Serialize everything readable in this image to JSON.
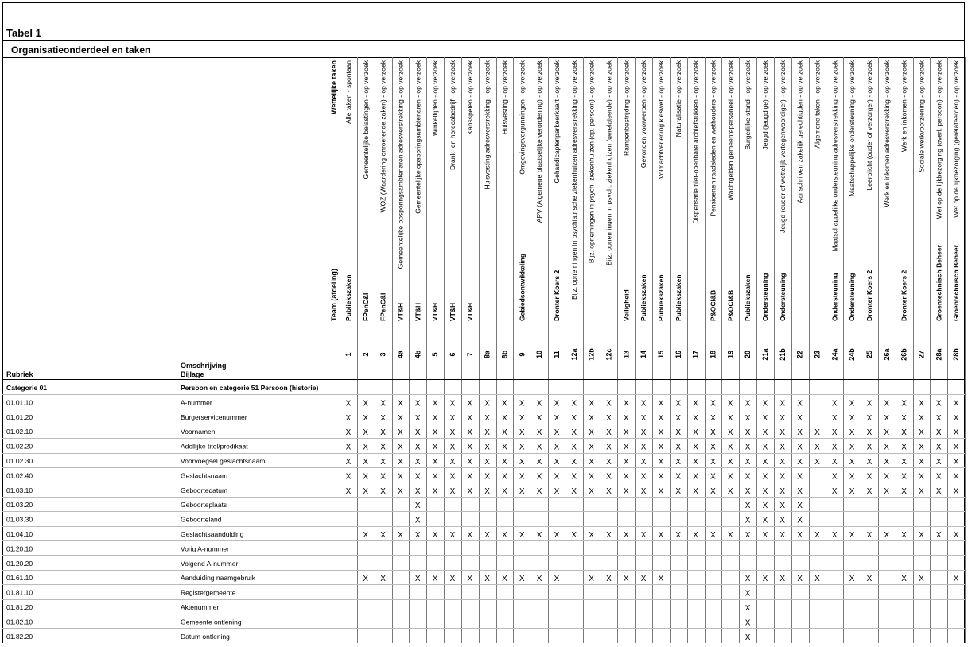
{
  "header": {
    "title": "Tabel 1",
    "subtitle": "Organisatieonderdeel en taken"
  },
  "table": {
    "team_heading": "Team (afdeling)",
    "task_heading": "Wettelijke taken",
    "rubriek_heading": "Rubriek",
    "omschrijving_heading": "Omschrijving",
    "bijlage_heading": "Bijlage",
    "columns": [
      {
        "id": "1",
        "team": "Publiekszaken",
        "task": "Alle taken - spontaan"
      },
      {
        "id": "2",
        "team": "FPenC&I",
        "task": "Gemeentelijke belastingen - op verzoek"
      },
      {
        "id": "3",
        "team": "FPenC&I",
        "task": "WOZ (Waardering onroerende zaken) - op verzoek"
      },
      {
        "id": "4a",
        "team": "VT&H",
        "task": "Gemeentelijke opsporingsambtenaren adresverstrekking - op verzoek"
      },
      {
        "id": "4b",
        "team": "VT&H",
        "task": "Gemeentelijke opsporingsambtenaren - op verzoek"
      },
      {
        "id": "5",
        "team": "VT&H",
        "task": "Winkeltijden - op verzoek"
      },
      {
        "id": "6",
        "team": "VT&H",
        "task": "Drank- en horecabedrijf - op verzoek"
      },
      {
        "id": "7",
        "team": "VT&H",
        "task": "Kansspelen - op verzoek"
      },
      {
        "id": "8a",
        "team": null,
        "task": "Huisvesting adresverstrekking - op verzoek"
      },
      {
        "id": "8b",
        "team": null,
        "task": "Huisvesting - op verzoek"
      },
      {
        "id": "9",
        "team": "Gebiedsontwikkeling",
        "task": "Omgevingsvergunningen - op verzoek"
      },
      {
        "id": "10",
        "team": null,
        "task": "APV (Algemene plaatselijke verordening) - op verzoek"
      },
      {
        "id": "11",
        "team": "Dronter Koers 2",
        "task": "Gehandicaptenparkeerkaart - op verzoek"
      },
      {
        "id": "12a",
        "team": null,
        "task": "Bijz. opnemingen in psychiatrische ziekenhuizen adresverstrekking - op verzoek"
      },
      {
        "id": "12b",
        "team": null,
        "task": "Bijz. opnemingen in psych. ziekenhuizen (op. persoon) - op verzoek"
      },
      {
        "id": "12c",
        "team": null,
        "task": "Bijz. opnemingen in psych. ziekenhuizen (gerelateerde) - op verzoek"
      },
      {
        "id": "13",
        "team": "Veiligheid",
        "task": "Rampenbestrijding - op verzoek"
      },
      {
        "id": "14",
        "team": "Publiekszaken",
        "task": "Gevonden voorwerpen - op verzoek"
      },
      {
        "id": "15",
        "team": "Publiekszaken",
        "task": "Volmachtverlening kieswet - op verzoek"
      },
      {
        "id": "16",
        "team": "Publiekszaken",
        "task": "Naturalisatie - op verzoek"
      },
      {
        "id": "17",
        "team": null,
        "task": "Dispensatie niet-openbare archiefstukken - op verzoek"
      },
      {
        "id": "18",
        "team": "P&OCI&B",
        "task": "Pensioenen raadsleden en wethouders - op verzoek"
      },
      {
        "id": "19",
        "team": "P&OCI&B",
        "task": "Wachtgelden gemeentepersoneel - op verzoek"
      },
      {
        "id": "20",
        "team": "Publiekszaken",
        "task": "Burgerlijke stand - op verzoek"
      },
      {
        "id": "21a",
        "team": "Ondersteuning",
        "task": "Jeugd (jeugdige) - op verzoek"
      },
      {
        "id": "21b",
        "team": "Ondersteuning",
        "task": "Jeugd (ouder of wettelijk vertegenwoordiger) - op verzoek"
      },
      {
        "id": "22",
        "team": null,
        "task": "Aanschrijven zakelijk gerechtigden - op verzoek"
      },
      {
        "id": "23",
        "team": null,
        "task": "Algemene taken - op verzoek"
      },
      {
        "id": "24a",
        "team": "Ondersteuning",
        "task": "Maatschappelijke ondersteuning adresverstrekking - op verzoek"
      },
      {
        "id": "24b",
        "team": "Ondersteuning",
        "task": "Maatschappelijke ondersteuning - op verzoek"
      },
      {
        "id": "25",
        "team": "Dronter Koers 2",
        "task": "Leerplicht (ouder of verzorger) - op verzoek"
      },
      {
        "id": "26a",
        "team": null,
        "task": "Werk en inkomen adresverstrekking - op verzoek"
      },
      {
        "id": "26b",
        "team": "Dronter Koers 2",
        "task": "Werk en inkomen - op verzoek"
      },
      {
        "id": "27",
        "team": null,
        "task": "Sociale werkvoorziening - op verzoek"
      },
      {
        "id": "28a",
        "team": "Groentechnisch Beheer",
        "task": "Wet op de lijkbezorging (overl. persoon) - op verzoek"
      },
      {
        "id": "28b",
        "team": "Groentechnisch Beheer",
        "task": "Wet op de lijkbezorging (gerelateerden) - op verzoek"
      }
    ],
    "category": {
      "rubriek": "Categorie 01",
      "omschrijving": "Persoon en categorie 51 Persoon (historie)"
    },
    "rows": [
      {
        "rubriek": "01.01.10",
        "omschrijving": "A-nummer",
        "cells": [
          "X",
          "X",
          "X",
          "X",
          "X",
          "X",
          "X",
          "X",
          "X",
          "X",
          "X",
          "X",
          "X",
          "X",
          "X",
          "X",
          "X",
          "X",
          "X",
          "X",
          "X",
          "X",
          "X",
          "X",
          "X",
          "X",
          "X",
          null,
          "X",
          "X",
          "X",
          "X",
          "X",
          "X",
          "X",
          "X"
        ]
      },
      {
        "rubriek": "01.01.20",
        "omschrijving": "Burgerservicenummer",
        "cells": [
          "X",
          "X",
          "X",
          "X",
          "X",
          "X",
          "X",
          "X",
          "X",
          "X",
          "X",
          "X",
          "X",
          "X",
          "X",
          "X",
          "X",
          "X",
          "X",
          "X",
          "X",
          "X",
          "X",
          "X",
          "X",
          "X",
          "X",
          null,
          "X",
          "X",
          "X",
          "X",
          "X",
          "X",
          "X",
          "X"
        ]
      },
      {
        "rubriek": "01.02.10",
        "omschrijving": "Voornamen",
        "cells": [
          "X",
          "X",
          "X",
          "X",
          "X",
          "X",
          "X",
          "X",
          "X",
          "X",
          "X",
          "X",
          "X",
          "X",
          "X",
          "X",
          "X",
          "X",
          "X",
          "X",
          "X",
          "X",
          "X",
          "X",
          "X",
          "X",
          "X",
          "X",
          "X",
          "X",
          "X",
          "X",
          "X",
          "X",
          "X",
          "X"
        ]
      },
      {
        "rubriek": "01.02.20",
        "omschrijving": "Adellijke titel/predikaat",
        "cells": [
          "X",
          "X",
          "X",
          "X",
          "X",
          "X",
          "X",
          "X",
          "X",
          "X",
          "X",
          "X",
          "X",
          "X",
          "X",
          "X",
          "X",
          "X",
          "X",
          "X",
          "X",
          "X",
          "X",
          "X",
          "X",
          "X",
          "X",
          "X",
          "X",
          "X",
          "X",
          "X",
          "X",
          "X",
          "X",
          "X"
        ]
      },
      {
        "rubriek": "01.02.30",
        "omschrijving": "Voorvoegsel geslachtsnaam",
        "cells": [
          "X",
          "X",
          "X",
          "X",
          "X",
          "X",
          "X",
          "X",
          "X",
          "X",
          "X",
          "X",
          "X",
          "X",
          "X",
          "X",
          "X",
          "X",
          "X",
          "X",
          "X",
          "X",
          "X",
          "X",
          "X",
          "X",
          "X",
          "X",
          "X",
          "X",
          "X",
          "X",
          "X",
          "X",
          "X",
          "X"
        ]
      },
      {
        "rubriek": "01.02.40",
        "omschrijving": "Geslachtsnaam",
        "cells": [
          "X",
          "X",
          "X",
          "X",
          "X",
          "X",
          "X",
          "X",
          "X",
          "X",
          "X",
          "X",
          "X",
          "X",
          "X",
          "X",
          "X",
          "X",
          "X",
          "X",
          "X",
          "X",
          "X",
          "X",
          "X",
          "X",
          "X",
          null,
          "X",
          "X",
          "X",
          "X",
          "X",
          "X",
          "X",
          "X"
        ]
      },
      {
        "rubriek": "01.03.10",
        "omschrijving": "Geboortedatum",
        "cells": [
          "X",
          "X",
          "X",
          "X",
          "X",
          "X",
          "X",
          "X",
          "X",
          "X",
          "X",
          "X",
          "X",
          "X",
          "X",
          "X",
          "X",
          "X",
          "X",
          "X",
          "X",
          "X",
          "X",
          "X",
          "X",
          "X",
          "X",
          null,
          "X",
          "X",
          "X",
          "X",
          "X",
          "X",
          "X",
          "X"
        ]
      },
      {
        "rubriek": "01.03.20",
        "omschrijving": "Geboorteplaats",
        "cells": [
          null,
          null,
          null,
          null,
          "X",
          null,
          null,
          null,
          null,
          null,
          null,
          null,
          null,
          null,
          null,
          null,
          null,
          null,
          null,
          null,
          null,
          null,
          null,
          "X",
          "X",
          "X",
          "X",
          null,
          null,
          null,
          null,
          null,
          null,
          null,
          null,
          null
        ]
      },
      {
        "rubriek": "01.03.30",
        "omschrijving": "Geboorteland",
        "cells": [
          null,
          null,
          null,
          null,
          "X",
          null,
          null,
          null,
          null,
          null,
          null,
          null,
          null,
          null,
          null,
          null,
          null,
          null,
          null,
          null,
          null,
          null,
          null,
          "X",
          "X",
          "X",
          "X",
          null,
          null,
          null,
          null,
          null,
          null,
          null,
          null,
          null
        ]
      },
      {
        "rubriek": "01.04.10",
        "omschrijving": "Geslachtsaanduiding",
        "cells": [
          null,
          "X",
          "X",
          "X",
          "X",
          "X",
          "X",
          "X",
          "X",
          "X",
          "X",
          "X",
          "X",
          "X",
          "X",
          "X",
          "X",
          "X",
          "X",
          "X",
          "X",
          "X",
          "X",
          "X",
          "X",
          "X",
          "X",
          "X",
          "X",
          "X",
          "X",
          "X",
          "X",
          "X",
          "X",
          "X"
        ]
      },
      {
        "rubriek": "01.20.10",
        "omschrijving": "Vorig A-nummer",
        "cells": [
          null,
          null,
          null,
          null,
          null,
          null,
          null,
          null,
          null,
          null,
          null,
          null,
          null,
          null,
          null,
          null,
          null,
          null,
          null,
          null,
          null,
          null,
          null,
          null,
          null,
          null,
          null,
          null,
          null,
          null,
          null,
          null,
          null,
          null,
          null,
          null
        ]
      },
      {
        "rubriek": "01.20.20",
        "omschrijving": "Volgend A-nummer",
        "cells": [
          null,
          null,
          null,
          null,
          null,
          null,
          null,
          null,
          null,
          null,
          null,
          null,
          null,
          null,
          null,
          null,
          null,
          null,
          null,
          null,
          null,
          null,
          null,
          null,
          null,
          null,
          null,
          null,
          null,
          null,
          null,
          null,
          null,
          null,
          null,
          null
        ]
      },
      {
        "rubriek": "01.61.10",
        "omschrijving": "Aanduiding naamgebruik",
        "cells": [
          null,
          "X",
          "X",
          null,
          "X",
          "X",
          "X",
          "X",
          "X",
          "X",
          "X",
          "X",
          "X",
          null,
          "X",
          "X",
          "X",
          "X",
          "X",
          null,
          null,
          null,
          null,
          "X",
          "X",
          "X",
          "X",
          "X",
          null,
          "X",
          "X",
          null,
          "X",
          "X",
          null,
          "X"
        ]
      },
      {
        "rubriek": "01.81.10",
        "omschrijving": "Registergemeente",
        "cells": [
          null,
          null,
          null,
          null,
          null,
          null,
          null,
          null,
          null,
          null,
          null,
          null,
          null,
          null,
          null,
          null,
          null,
          null,
          null,
          null,
          null,
          null,
          null,
          "X",
          null,
          null,
          null,
          null,
          null,
          null,
          null,
          null,
          null,
          null,
          null,
          null
        ]
      },
      {
        "rubriek": "01.81.20",
        "omschrijving": "Aktenummer",
        "cells": [
          null,
          null,
          null,
          null,
          null,
          null,
          null,
          null,
          null,
          null,
          null,
          null,
          null,
          null,
          null,
          null,
          null,
          null,
          null,
          null,
          null,
          null,
          null,
          "X",
          null,
          null,
          null,
          null,
          null,
          null,
          null,
          null,
          null,
          null,
          null,
          null
        ]
      },
      {
        "rubriek": "01.82.10",
        "omschrijving": "Gemeente ontlening",
        "cells": [
          null,
          null,
          null,
          null,
          null,
          null,
          null,
          null,
          null,
          null,
          null,
          null,
          null,
          null,
          null,
          null,
          null,
          null,
          null,
          null,
          null,
          null,
          null,
          "X",
          null,
          null,
          null,
          null,
          null,
          null,
          null,
          null,
          null,
          null,
          null,
          null
        ]
      },
      {
        "rubriek": "01.82.20",
        "omschrijving": "Datum ontlening",
        "cells": [
          null,
          null,
          null,
          null,
          null,
          null,
          null,
          null,
          null,
          null,
          null,
          null,
          null,
          null,
          null,
          null,
          null,
          null,
          null,
          null,
          null,
          null,
          null,
          "X",
          null,
          null,
          null,
          null,
          null,
          null,
          null,
          null,
          null,
          null,
          null,
          null
        ]
      }
    ]
  }
}
